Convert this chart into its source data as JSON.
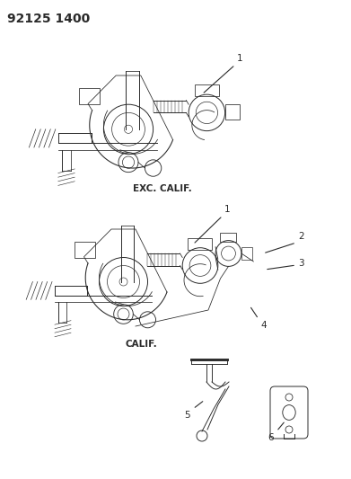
{
  "title": "92125 1400",
  "background_color": "#ffffff",
  "label1": "EXC. CALIF.",
  "label2": "CALIF.",
  "part_labels": [
    "1",
    "1",
    "2",
    "3",
    "4",
    "5",
    "6"
  ],
  "line_color": "#2a2a2a",
  "line_width": 0.7,
  "title_fontsize": 10,
  "label_fontsize": 7.5,
  "part_fontsize": 7.5,
  "fig_width": 3.91,
  "fig_height": 5.33,
  "dpi": 100
}
